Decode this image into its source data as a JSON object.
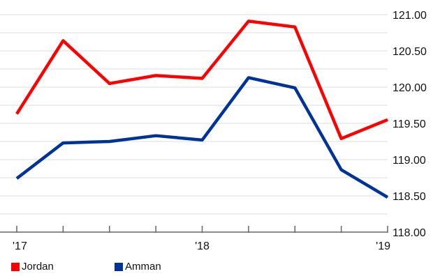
{
  "chart_data": {
    "type": "line",
    "x": [
      0,
      1,
      2,
      3,
      4,
      5,
      6,
      7,
      8
    ],
    "x_ticks": [
      {
        "pos": 0,
        "label": "'17"
      },
      {
        "pos": 4,
        "label": "'18"
      },
      {
        "pos": 8,
        "label": "'19"
      }
    ],
    "xlim": [
      0,
      8
    ],
    "ylim": [
      118.0,
      121.0
    ],
    "y_ticks": [
      "118.00",
      "118.50",
      "119.00",
      "119.50",
      "120.00",
      "120.50",
      "121.00"
    ],
    "y_axis_position": "right",
    "grid": true,
    "legend_position": "bottom-left",
    "series": [
      {
        "name": "Jordan",
        "color": "#ff0000",
        "values": [
          119.63,
          120.64,
          120.05,
          120.16,
          120.12,
          120.91,
          120.83,
          119.29,
          119.55
        ]
      },
      {
        "name": "Amman",
        "color": "#003399",
        "values": [
          118.74,
          119.23,
          119.25,
          119.33,
          119.27,
          120.13,
          119.99,
          118.86,
          118.48
        ]
      }
    ]
  }
}
